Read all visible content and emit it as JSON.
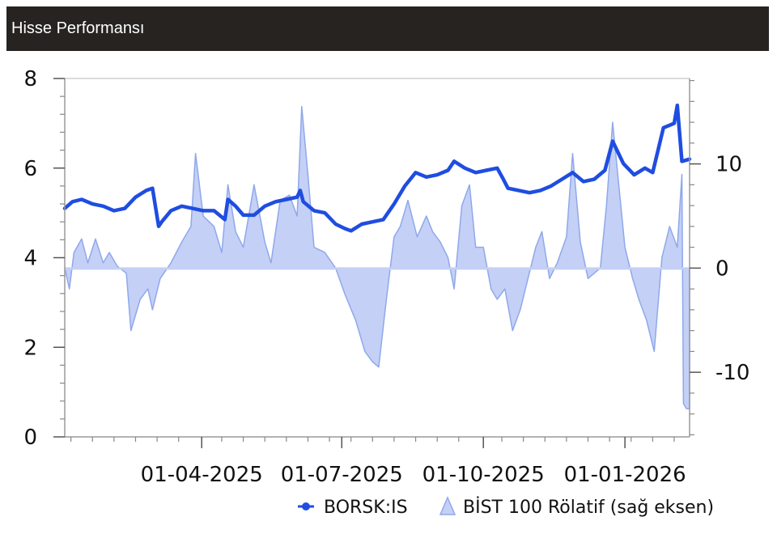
{
  "header": {
    "title": "Hisse Performansı"
  },
  "chart_data": {
    "type": "line",
    "title": "",
    "xlabel": "",
    "ylabel": "",
    "x_start": "2025-01-02",
    "x_end": "2026-02-12",
    "x_ticks": [
      {
        "date": "2025-04-01",
        "label": "01-04-2025"
      },
      {
        "date": "2025-07-01",
        "label": "01-07-2025"
      },
      {
        "date": "2025-10-01",
        "label": "01-10-2025"
      },
      {
        "date": "2026-01-01",
        "label": "01-01-2026"
      }
    ],
    "y_left": {
      "min": 0,
      "max": 8,
      "ticks": [
        0,
        2,
        4,
        6,
        8
      ]
    },
    "y_right": {
      "min": -16.2,
      "max": 18.2,
      "ticks": [
        -10,
        0,
        10
      ]
    },
    "legend_position": "bottom-right",
    "grid": false,
    "series": [
      {
        "name": "BORSK:IS",
        "type": "line",
        "axis": "left",
        "color": "#1f4de0",
        "points": [
          [
            "2025-01-02",
            5.1
          ],
          [
            "2025-01-07",
            5.25
          ],
          [
            "2025-01-13",
            5.3
          ],
          [
            "2025-01-20",
            5.2
          ],
          [
            "2025-01-27",
            5.15
          ],
          [
            "2025-02-03",
            5.05
          ],
          [
            "2025-02-10",
            5.1
          ],
          [
            "2025-02-17",
            5.35
          ],
          [
            "2025-02-24",
            5.5
          ],
          [
            "2025-02-28",
            5.55
          ],
          [
            "2025-03-04",
            4.7
          ],
          [
            "2025-03-06",
            4.8
          ],
          [
            "2025-03-12",
            5.05
          ],
          [
            "2025-03-19",
            5.15
          ],
          [
            "2025-03-26",
            5.1
          ],
          [
            "2025-04-02",
            5.05
          ],
          [
            "2025-04-09",
            5.05
          ],
          [
            "2025-04-16",
            4.85
          ],
          [
            "2025-04-18",
            5.3
          ],
          [
            "2025-04-23",
            5.15
          ],
          [
            "2025-04-28",
            4.95
          ],
          [
            "2025-05-05",
            4.95
          ],
          [
            "2025-05-12",
            5.15
          ],
          [
            "2025-05-19",
            5.25
          ],
          [
            "2025-05-26",
            5.3
          ],
          [
            "2025-06-02",
            5.35
          ],
          [
            "2025-06-04",
            5.5
          ],
          [
            "2025-06-06",
            5.25
          ],
          [
            "2025-06-13",
            5.05
          ],
          [
            "2025-06-20",
            5.0
          ],
          [
            "2025-06-27",
            4.75
          ],
          [
            "2025-07-03",
            4.65
          ],
          [
            "2025-07-07",
            4.6
          ],
          [
            "2025-07-14",
            4.75
          ],
          [
            "2025-07-21",
            4.8
          ],
          [
            "2025-07-28",
            4.85
          ],
          [
            "2025-08-04",
            5.2
          ],
          [
            "2025-08-11",
            5.6
          ],
          [
            "2025-08-18",
            5.9
          ],
          [
            "2025-08-25",
            5.8
          ],
          [
            "2025-09-01",
            5.85
          ],
          [
            "2025-09-08",
            5.95
          ],
          [
            "2025-09-12",
            6.15
          ],
          [
            "2025-09-19",
            6.0
          ],
          [
            "2025-09-26",
            5.9
          ],
          [
            "2025-10-03",
            5.95
          ],
          [
            "2025-10-10",
            6.0
          ],
          [
            "2025-10-14",
            5.75
          ],
          [
            "2025-10-17",
            5.55
          ],
          [
            "2025-10-24",
            5.5
          ],
          [
            "2025-10-31",
            5.45
          ],
          [
            "2025-11-07",
            5.5
          ],
          [
            "2025-11-14",
            5.6
          ],
          [
            "2025-11-21",
            5.75
          ],
          [
            "2025-11-28",
            5.9
          ],
          [
            "2025-12-05",
            5.7
          ],
          [
            "2025-12-12",
            5.75
          ],
          [
            "2025-12-19",
            5.95
          ],
          [
            "2025-12-24",
            6.6
          ],
          [
            "2025-12-31",
            6.1
          ],
          [
            "2026-01-07",
            5.85
          ],
          [
            "2026-01-14",
            6.0
          ],
          [
            "2026-01-19",
            5.9
          ],
          [
            "2026-01-26",
            6.9
          ],
          [
            "2026-02-02",
            7.0
          ],
          [
            "2026-02-04",
            7.4
          ],
          [
            "2026-02-07",
            6.15
          ],
          [
            "2026-02-12",
            6.2
          ]
        ]
      },
      {
        "name": "BİST 100 Rölatif (sağ eksen)",
        "type": "area",
        "axis": "right",
        "color": "#8fa8ea",
        "points": [
          [
            "2025-01-02",
            0
          ],
          [
            "2025-01-05",
            -2
          ],
          [
            "2025-01-08",
            1.5
          ],
          [
            "2025-01-13",
            2.8
          ],
          [
            "2025-01-17",
            0.5
          ],
          [
            "2025-01-22",
            2.8
          ],
          [
            "2025-01-27",
            0.5
          ],
          [
            "2025-01-31",
            1.5
          ],
          [
            "2025-02-05",
            0.2
          ],
          [
            "2025-02-11",
            -0.5
          ],
          [
            "2025-02-14",
            -6
          ],
          [
            "2025-02-20",
            -3
          ],
          [
            "2025-02-25",
            -2
          ],
          [
            "2025-02-28",
            -4
          ],
          [
            "2025-03-05",
            -1
          ],
          [
            "2025-03-12",
            0.5
          ],
          [
            "2025-03-19",
            2.5
          ],
          [
            "2025-03-25",
            4
          ],
          [
            "2025-03-28",
            11
          ],
          [
            "2025-04-02",
            5
          ],
          [
            "2025-04-09",
            4
          ],
          [
            "2025-04-14",
            1.5
          ],
          [
            "2025-04-18",
            8
          ],
          [
            "2025-04-23",
            3.5
          ],
          [
            "2025-04-28",
            2
          ],
          [
            "2025-05-05",
            8
          ],
          [
            "2025-05-12",
            2.5
          ],
          [
            "2025-05-16",
            0.5
          ],
          [
            "2025-05-22",
            6.5
          ],
          [
            "2025-05-28",
            7
          ],
          [
            "2025-06-02",
            5
          ],
          [
            "2025-06-05",
            15.5
          ],
          [
            "2025-06-09",
            9
          ],
          [
            "2025-06-13",
            2
          ],
          [
            "2025-06-20",
            1.5
          ],
          [
            "2025-06-27",
            0
          ],
          [
            "2025-07-03",
            -2.5
          ],
          [
            "2025-07-10",
            -5
          ],
          [
            "2025-07-16",
            -8
          ],
          [
            "2025-07-21",
            -9
          ],
          [
            "2025-07-25",
            -9.5
          ],
          [
            "2025-07-30",
            -3
          ],
          [
            "2025-08-04",
            3
          ],
          [
            "2025-08-08",
            4
          ],
          [
            "2025-08-13",
            6.5
          ],
          [
            "2025-08-19",
            3
          ],
          [
            "2025-08-25",
            5
          ],
          [
            "2025-08-29",
            3.5
          ],
          [
            "2025-09-03",
            2.5
          ],
          [
            "2025-09-08",
            1
          ],
          [
            "2025-09-12",
            -2
          ],
          [
            "2025-09-17",
            6
          ],
          [
            "2025-09-22",
            8
          ],
          [
            "2025-09-26",
            2
          ],
          [
            "2025-10-01",
            2
          ],
          [
            "2025-10-06",
            -2
          ],
          [
            "2025-10-10",
            -3
          ],
          [
            "2025-10-15",
            -2
          ],
          [
            "2025-10-20",
            -6
          ],
          [
            "2025-10-25",
            -4
          ],
          [
            "2025-10-30",
            -1
          ],
          [
            "2025-11-04",
            2
          ],
          [
            "2025-11-08",
            3.5
          ],
          [
            "2025-11-13",
            -1
          ],
          [
            "2025-11-18",
            0.5
          ],
          [
            "2025-11-24",
            3
          ],
          [
            "2025-11-28",
            11
          ],
          [
            "2025-12-03",
            2.5
          ],
          [
            "2025-12-08",
            -1
          ],
          [
            "2025-12-12",
            -0.5
          ],
          [
            "2025-12-16",
            0
          ],
          [
            "2025-12-20",
            6
          ],
          [
            "2025-12-24",
            14
          ],
          [
            "2025-12-28",
            8
          ],
          [
            "2026-01-01",
            2
          ],
          [
            "2026-01-06",
            -1
          ],
          [
            "2026-01-10",
            -3
          ],
          [
            "2026-01-15",
            -5
          ],
          [
            "2026-01-20",
            -8
          ],
          [
            "2026-01-25",
            1
          ],
          [
            "2026-01-30",
            4
          ],
          [
            "2026-02-04",
            2
          ],
          [
            "2026-02-07",
            9
          ],
          [
            "2026-02-08",
            -13
          ],
          [
            "2026-02-10",
            -13.5
          ],
          [
            "2026-02-12",
            -13.5
          ]
        ]
      }
    ]
  }
}
